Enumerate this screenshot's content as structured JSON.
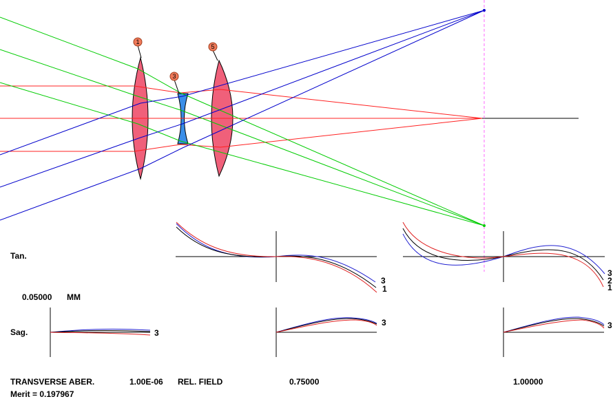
{
  "surface_labels": [
    "1",
    "3",
    "5"
  ],
  "labels": {
    "tan": "Tan.",
    "sag": "Sag.",
    "scale_value": "0.05000",
    "scale_unit": "MM",
    "transverse": "TRANSVERSE ABER.",
    "wavelength": "1.00E-06",
    "rel_field": "REL. FIELD",
    "field_0": "0.75000",
    "field_1": "1.00000",
    "merit": "Merit = 0.197967"
  },
  "curve_tags": {
    "tan_field_075": [
      "3",
      "1"
    ],
    "tan_field_100": [
      "3",
      "2",
      "1"
    ],
    "sag_field_000": [
      "3"
    ],
    "sag_field_075": [
      "3"
    ],
    "sag_field_100": [
      "3"
    ]
  },
  "colors": {
    "lens_positive": "#f0607a",
    "lens_negative": "#3a8ee8",
    "ray_axial": "#ff2020",
    "ray_mid": "#00cc00",
    "ray_edge": "#0000cc",
    "image_plane": "#ff66ff",
    "aber_blue": "#2020d0",
    "aber_black": "#000000",
    "aber_red": "#e02020"
  }
}
